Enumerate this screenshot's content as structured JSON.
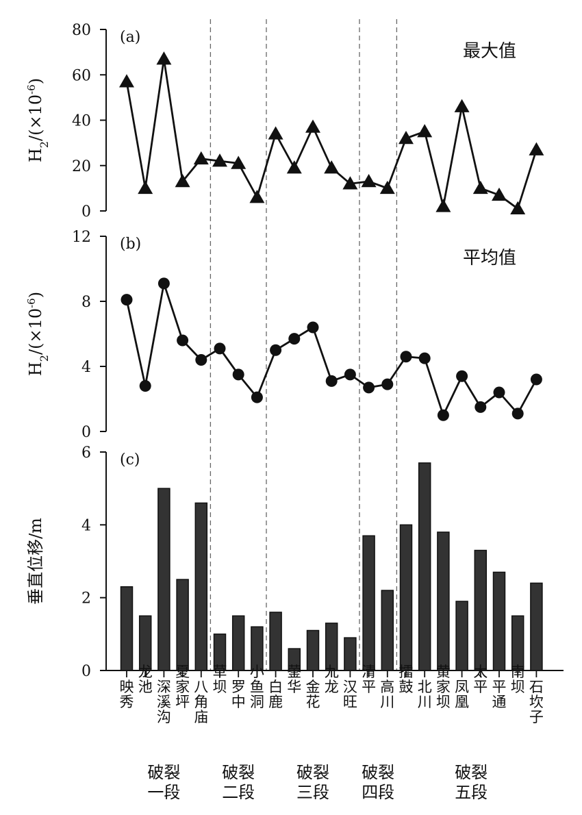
{
  "chart_data": [
    {
      "type": "line",
      "panel": "(a)",
      "series_title": "最大值",
      "ylabel": "H<sub>2</sub>/(×10<sup>-6</sup>)",
      "ylim": [
        0,
        80
      ],
      "yticks": [
        0,
        20,
        40,
        60,
        80
      ],
      "marker": "triangle",
      "values": [
        57,
        10,
        67,
        13,
        23,
        22,
        21,
        6,
        34,
        19,
        37,
        19,
        12,
        13,
        10,
        32,
        35,
        2,
        46,
        10,
        7,
        1,
        27
      ]
    },
    {
      "type": "line",
      "panel": "(b)",
      "series_title": "平均值",
      "ylabel": "H<sub>2</sub>/(×10<sup>-6</sup>)",
      "ylim": [
        0,
        12
      ],
      "yticks": [
        0,
        4,
        8,
        12
      ],
      "marker": "circle",
      "values": [
        8.1,
        2.8,
        9.1,
        5.6,
        4.4,
        5.1,
        3.5,
        2.1,
        5.0,
        5.7,
        6.4,
        3.1,
        3.5,
        2.7,
        2.9,
        4.6,
        4.5,
        1.0,
        3.4,
        1.5,
        2.4,
        1.1,
        3.2
      ]
    },
    {
      "type": "bar",
      "panel": "(c)",
      "ylabel": "垂直位移/m",
      "ylim": [
        0,
        6
      ],
      "yticks": [
        0,
        2,
        4,
        6
      ],
      "values": [
        2.3,
        1.5,
        5.0,
        2.5,
        4.6,
        1.0,
        1.5,
        1.2,
        1.6,
        0.6,
        1.1,
        1.3,
        0.9,
        3.7,
        2.2,
        4.0,
        5.7,
        3.8,
        1.9,
        3.3,
        2.7,
        1.5,
        2.4
      ]
    }
  ],
  "categories": [
    "映秀",
    "龙池",
    "深溪沟",
    "夏家坪",
    "八角庙",
    "草坝",
    "罗中",
    "小鱼洞",
    "白鹿",
    "蓥华",
    "金花",
    "九龙",
    "汉旺",
    "清平",
    "高川",
    "擂鼓",
    "北川",
    "黄家坝",
    "凤凰",
    "太平",
    "平通",
    "南坝",
    "石坎子"
  ],
  "segments": [
    {
      "line1": "破裂",
      "line2": "一段",
      "from": 0,
      "to": 4
    },
    {
      "line1": "破裂",
      "line2": "二段",
      "from": 5,
      "to": 7
    },
    {
      "line1": "破裂",
      "line2": "三段",
      "from": 8,
      "to": 12
    },
    {
      "line1": "破裂",
      "line2": "四段",
      "from": 13,
      "to": 14
    },
    {
      "line1": "破裂",
      "line2": "五段",
      "from": 15,
      "to": 22
    }
  ],
  "segment_boundaries_after": [
    4,
    7,
    12,
    14
  ],
  "colors": {
    "ink": "#111111",
    "bar": "#333333",
    "divider": "#666666"
  }
}
